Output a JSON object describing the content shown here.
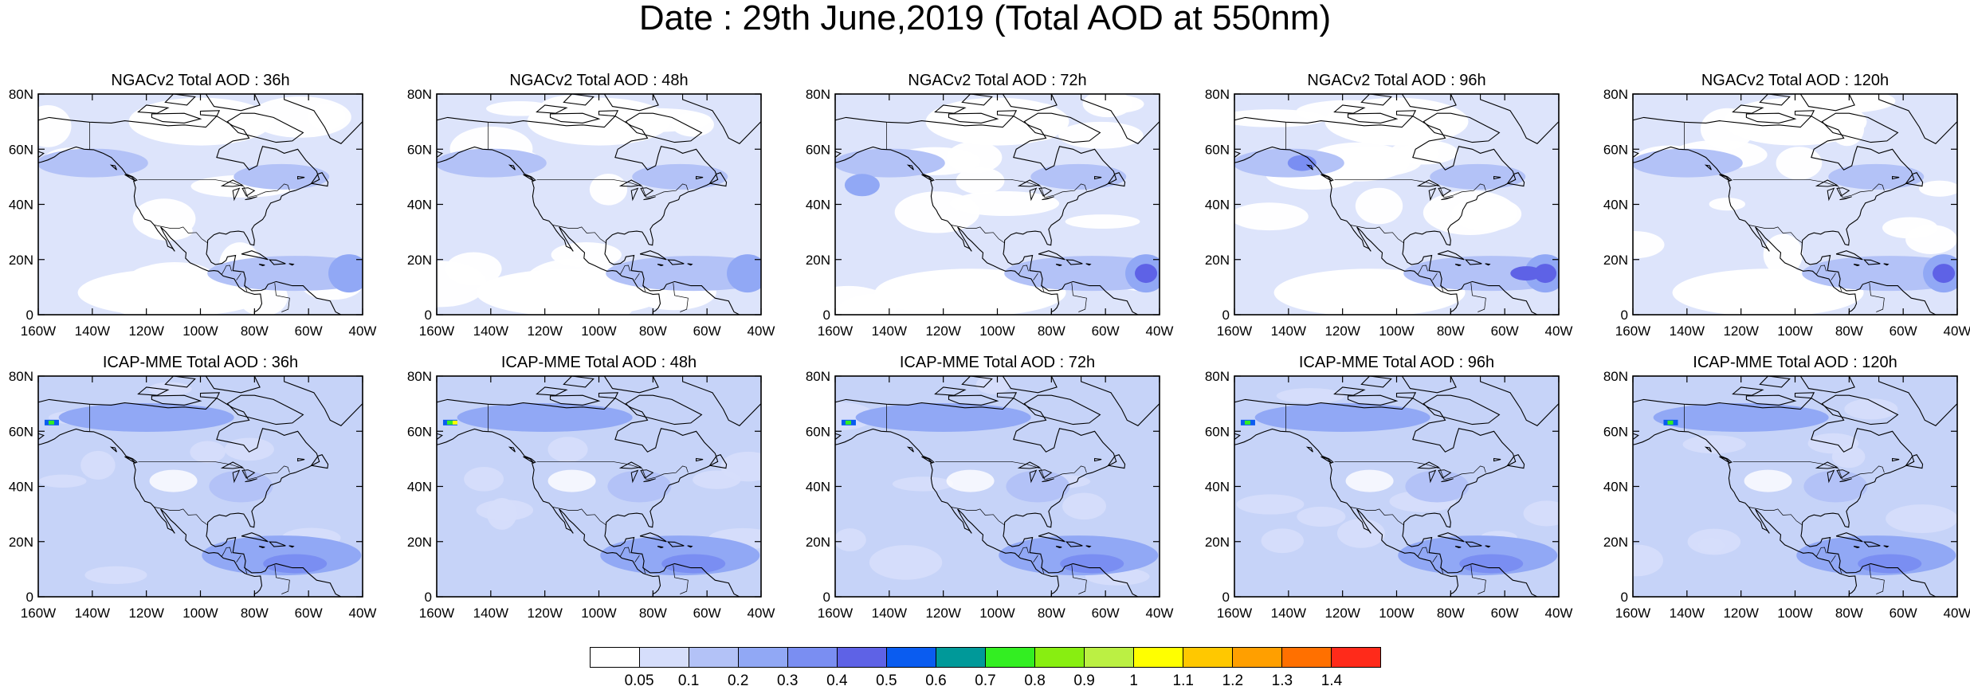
{
  "title": "Date : 29th June,2019 (Total AOD at 550nm)",
  "rows": [
    {
      "model": "NGACv2",
      "panels": [
        {
          "title": "NGACv2 Total AOD : 36h",
          "highlight": "low"
        },
        {
          "title": "NGACv2 Total AOD : 48h",
          "highlight": "low"
        },
        {
          "title": "NGACv2 Total AOD : 72h",
          "highlight": "low"
        },
        {
          "title": "NGACv2 Total AOD : 96h",
          "highlight": "low"
        },
        {
          "title": "NGACv2 Total AOD : 120h",
          "highlight": "low"
        }
      ]
    },
    {
      "model": "ICAP-MME",
      "panels": [
        {
          "title": "ICAP-MME Total AOD : 36h",
          "highlight": "high"
        },
        {
          "title": "ICAP-MME Total AOD : 48h",
          "highlight": "high"
        },
        {
          "title": "ICAP-MME Total AOD : 72h",
          "highlight": "high"
        },
        {
          "title": "ICAP-MME Total AOD : 96h",
          "highlight": "high"
        },
        {
          "title": "ICAP-MME Total AOD : 120h",
          "highlight": "high"
        }
      ]
    }
  ],
  "lat_ticks": [
    "0",
    "20N",
    "40N",
    "60N",
    "80N"
  ],
  "lon_ticks": [
    "160W",
    "140W",
    "120W",
    "100W",
    "80W",
    "60W",
    "40W"
  ],
  "lat_range": [
    0,
    80
  ],
  "lon_range": [
    -160,
    -40
  ],
  "colorbar": {
    "colors": [
      "#ffffff",
      "#d6defb",
      "#b3c2f7",
      "#91a8f5",
      "#7a8ef2",
      "#5e62e6",
      "#0a5cf0",
      "#009999",
      "#33ee22",
      "#88ee11",
      "#bbf043",
      "#ffff00",
      "#ffc800",
      "#ff9f00",
      "#ff7000",
      "#ff2a1a"
    ],
    "labels": [
      "0.05",
      "0.1",
      "0.2",
      "0.3",
      "0.4",
      "0.5",
      "0.6",
      "0.7",
      "0.8",
      "0.9",
      "1",
      "1.1",
      "1.2",
      "1.3",
      "1.4"
    ]
  }
}
